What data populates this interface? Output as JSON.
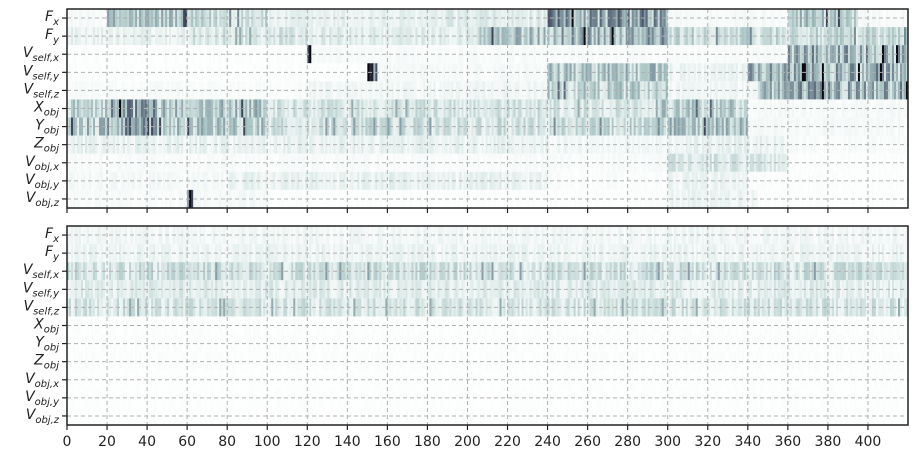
{
  "chart_data": [
    {
      "type": "heatmap",
      "title": "",
      "xlabel": "",
      "ylabel": "",
      "xlim": [
        0,
        420
      ],
      "x_tick_values": [
        0,
        20,
        40,
        60,
        80,
        100,
        120,
        140,
        160,
        180,
        200,
        220,
        240,
        260,
        280,
        300,
        320,
        340,
        360,
        380,
        400
      ],
      "x_tick_labels_shown": false,
      "grid": "dashed",
      "colormap": "bone_r",
      "rows": [
        {
          "base": "F",
          "sub": "x"
        },
        {
          "base": "F",
          "sub": "y"
        },
        {
          "base": "V",
          "sub": "self,x"
        },
        {
          "base": "V",
          "sub": "self,y"
        },
        {
          "base": "V",
          "sub": "self,z"
        },
        {
          "base": "X",
          "sub": "obj"
        },
        {
          "base": "Y",
          "sub": "obj"
        },
        {
          "base": "Z",
          "sub": "obj"
        },
        {
          "base": "V",
          "sub": "obj,x"
        },
        {
          "base": "V",
          "sub": "obj,y"
        },
        {
          "base": "V",
          "sub": "obj,z"
        }
      ],
      "approx_intensity_profile": [
        {
          "row": 0,
          "segments": [
            [
              0,
              20,
              0.05
            ],
            [
              20,
              60,
              0.35
            ],
            [
              60,
              100,
              0.25
            ],
            [
              100,
              190,
              0.12
            ],
            [
              190,
              240,
              0.15
            ],
            [
              240,
              300,
              0.5
            ],
            [
              300,
              360,
              0.05
            ],
            [
              360,
              395,
              0.35
            ],
            [
              395,
              420,
              0.05
            ]
          ]
        },
        {
          "row": 1,
          "segments": [
            [
              0,
              60,
              0.12
            ],
            [
              60,
              120,
              0.2
            ],
            [
              120,
              205,
              0.15
            ],
            [
              205,
              245,
              0.35
            ],
            [
              245,
              300,
              0.45
            ],
            [
              300,
              420,
              0.25
            ]
          ]
        },
        {
          "row": 2,
          "segments": [
            [
              0,
              120,
              0.02
            ],
            [
              120,
              122,
              0.8
            ],
            [
              122,
              360,
              0.04
            ],
            [
              360,
              420,
              0.45
            ]
          ]
        },
        {
          "row": 3,
          "segments": [
            [
              0,
              150,
              0.02
            ],
            [
              150,
              155,
              0.7
            ],
            [
              155,
              240,
              0.05
            ],
            [
              240,
              300,
              0.35
            ],
            [
              300,
              340,
              0.1
            ],
            [
              340,
              420,
              0.45
            ]
          ]
        },
        {
          "row": 4,
          "segments": [
            [
              0,
              120,
              0.04
            ],
            [
              120,
              240,
              0.08
            ],
            [
              240,
              300,
              0.3
            ],
            [
              300,
              345,
              0.08
            ],
            [
              345,
              420,
              0.45
            ]
          ]
        },
        {
          "row": 5,
          "segments": [
            [
              0,
              20,
              0.3
            ],
            [
              20,
              45,
              0.5
            ],
            [
              45,
              100,
              0.35
            ],
            [
              100,
              240,
              0.2
            ],
            [
              240,
              300,
              0.2
            ],
            [
              300,
              340,
              0.3
            ],
            [
              340,
              420,
              0.05
            ]
          ]
        },
        {
          "row": 6,
          "segments": [
            [
              0,
              20,
              0.35
            ],
            [
              20,
              45,
              0.55
            ],
            [
              45,
              100,
              0.35
            ],
            [
              100,
              240,
              0.22
            ],
            [
              240,
              300,
              0.25
            ],
            [
              300,
              340,
              0.35
            ],
            [
              340,
              420,
              0.05
            ]
          ]
        },
        {
          "row": 7,
          "segments": [
            [
              0,
              240,
              0.12
            ],
            [
              240,
              300,
              0.08
            ],
            [
              300,
              360,
              0.12
            ],
            [
              360,
              420,
              0.04
            ]
          ]
        },
        {
          "row": 8,
          "segments": [
            [
              0,
              300,
              0.04
            ],
            [
              300,
              360,
              0.18
            ],
            [
              360,
              420,
              0.02
            ]
          ]
        },
        {
          "row": 9,
          "segments": [
            [
              0,
              80,
              0.06
            ],
            [
              80,
              240,
              0.12
            ],
            [
              240,
              300,
              0.03
            ],
            [
              300,
              340,
              0.1
            ],
            [
              340,
              420,
              0.02
            ]
          ]
        },
        {
          "row": 10,
          "segments": [
            [
              0,
              60,
              0.04
            ],
            [
              60,
              63,
              0.7
            ],
            [
              63,
              100,
              0.06
            ],
            [
              100,
              300,
              0.02
            ],
            [
              300,
              345,
              0.1
            ],
            [
              345,
              420,
              0.02
            ]
          ]
        }
      ]
    },
    {
      "type": "heatmap",
      "title": "",
      "xlabel": "",
      "ylabel": "",
      "xlim": [
        0,
        420
      ],
      "x_tick_values": [
        0,
        20,
        40,
        60,
        80,
        100,
        120,
        140,
        160,
        180,
        200,
        220,
        240,
        260,
        280,
        300,
        320,
        340,
        360,
        380,
        400
      ],
      "x_tick_labels": [
        "0",
        "20",
        "40",
        "60",
        "80",
        "100",
        "120",
        "140",
        "160",
        "180",
        "200",
        "220",
        "240",
        "260",
        "280",
        "300",
        "320",
        "340",
        "360",
        "380",
        "400"
      ],
      "grid": "dashed",
      "colormap": "bone_r",
      "rows": [
        {
          "base": "F",
          "sub": "x"
        },
        {
          "base": "F",
          "sub": "y"
        },
        {
          "base": "V",
          "sub": "self,x"
        },
        {
          "base": "V",
          "sub": "self,y"
        },
        {
          "base": "V",
          "sub": "self,z"
        },
        {
          "base": "X",
          "sub": "obj"
        },
        {
          "base": "Y",
          "sub": "obj"
        },
        {
          "base": "Z",
          "sub": "obj"
        },
        {
          "base": "V",
          "sub": "obj,x"
        },
        {
          "base": "V",
          "sub": "obj,y"
        },
        {
          "base": "V",
          "sub": "obj,z"
        }
      ],
      "approx_intensity_profile": [
        {
          "row": 0,
          "segments": [
            [
              0,
              420,
              0.08
            ]
          ]
        },
        {
          "row": 1,
          "segments": [
            [
              0,
              420,
              0.1
            ]
          ]
        },
        {
          "row": 2,
          "segments": [
            [
              0,
              420,
              0.22
            ]
          ]
        },
        {
          "row": 3,
          "segments": [
            [
              0,
              420,
              0.15
            ]
          ]
        },
        {
          "row": 4,
          "segments": [
            [
              0,
              420,
              0.2
            ]
          ]
        },
        {
          "row": 5,
          "segments": [
            [
              0,
              420,
              0.02
            ]
          ]
        },
        {
          "row": 6,
          "segments": [
            [
              0,
              420,
              0.02
            ]
          ]
        },
        {
          "row": 7,
          "segments": [
            [
              0,
              420,
              0.02
            ]
          ]
        },
        {
          "row": 8,
          "segments": [
            [
              0,
              420,
              0.015
            ]
          ]
        },
        {
          "row": 9,
          "segments": [
            [
              0,
              420,
              0.015
            ]
          ]
        },
        {
          "row": 10,
          "segments": [
            [
              0,
              420,
              0.015
            ]
          ]
        }
      ]
    }
  ]
}
